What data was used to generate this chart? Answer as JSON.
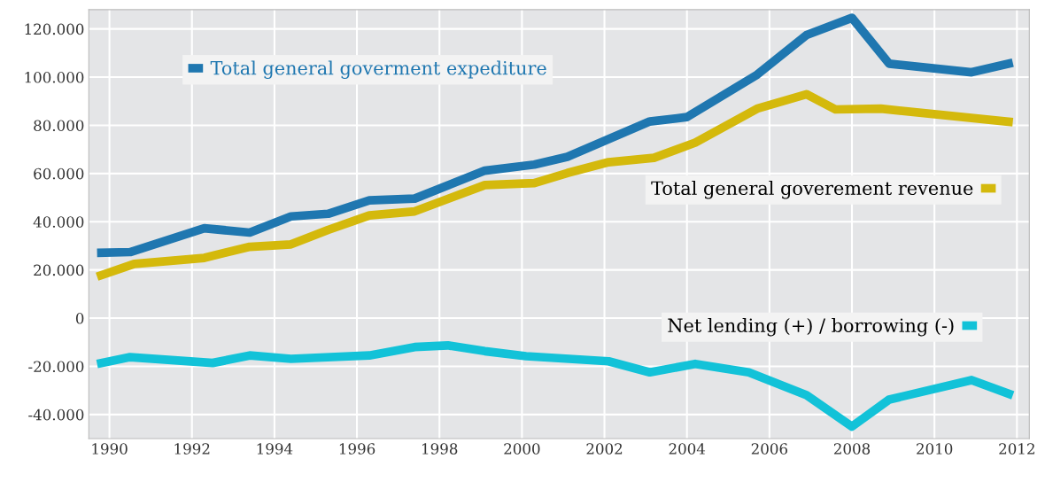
{
  "chart_data": {
    "type": "line",
    "grid": true,
    "legend": "right",
    "marker": "none",
    "line_style": "solid",
    "xlim": [
      1989.5,
      2012.3
    ],
    "ylim": [
      -50000,
      128000
    ],
    "xticks": [
      1990,
      1992,
      1994,
      1996,
      1998,
      2000,
      2002,
      2004,
      2006,
      2008,
      2010,
      2012
    ],
    "yticks": [
      {
        "value": 120000,
        "label": "120.000"
      },
      {
        "value": 100000,
        "label": "100.000"
      },
      {
        "value": 80000,
        "label": "80.000"
      },
      {
        "value": 60000,
        "label": "60.000"
      },
      {
        "value": 40000,
        "label": "40.000"
      },
      {
        "value": 20000,
        "label": "20.000"
      },
      0,
      {
        "value": -20000,
        "label": "-20.000"
      },
      {
        "value": -40000,
        "label": "-40.000"
      }
    ],
    "series": [
      {
        "name": "Total general goverment expediture",
        "color": "#1f77b0",
        "x": [
          1989.7,
          1990.5,
          1992.3,
          1993.4,
          1994.4,
          1995.3,
          1996.3,
          1997.4,
          1999.1,
          2000.3,
          2001.1,
          2003.1,
          2004.0,
          2005.7,
          2006.9,
          2008.0,
          2008.9,
          2010.9,
          2011.9
        ],
        "values": [
          27100,
          27400,
          37300,
          35500,
          42200,
          43300,
          48900,
          49600,
          61200,
          63700,
          66900,
          81600,
          83400,
          101000,
          117500,
          124600,
          105600,
          102000,
          106000
        ]
      },
      {
        "name": "Total general goverement revenue",
        "color": "#d4b90c",
        "x": [
          1989.7,
          1990.6,
          1992.3,
          1993.4,
          1994.4,
          1995.3,
          1996.3,
          1997.4,
          1999.1,
          2000.3,
          2001.1,
          2002.1,
          2003.2,
          2004.2,
          2005.7,
          2006.9,
          2007.6,
          2008.7,
          2011.9
        ],
        "values": [
          17200,
          22500,
          25000,
          29600,
          30600,
          36600,
          42600,
          44300,
          55200,
          56000,
          60200,
          64700,
          66500,
          72800,
          86900,
          92900,
          86600,
          86900,
          81300
        ]
      },
      {
        "name": "Net lending (+) / borrowing (-)",
        "color": "#12c2d8",
        "x": [
          1989.7,
          1990.5,
          1992.5,
          1993.4,
          1994.4,
          1996.3,
          1997.4,
          1998.2,
          1999.1,
          2000.1,
          2002.1,
          2003.1,
          2004.2,
          2005.5,
          2006.9,
          2008.0,
          2008.9,
          2010.9,
          2011.9
        ],
        "values": [
          -19000,
          -16200,
          -18600,
          -15500,
          -16900,
          -15500,
          -12000,
          -11300,
          -13700,
          -15800,
          -17900,
          -22500,
          -19000,
          -22500,
          -32000,
          -45000,
          -33800,
          -25700,
          -32000
        ]
      }
    ]
  }
}
